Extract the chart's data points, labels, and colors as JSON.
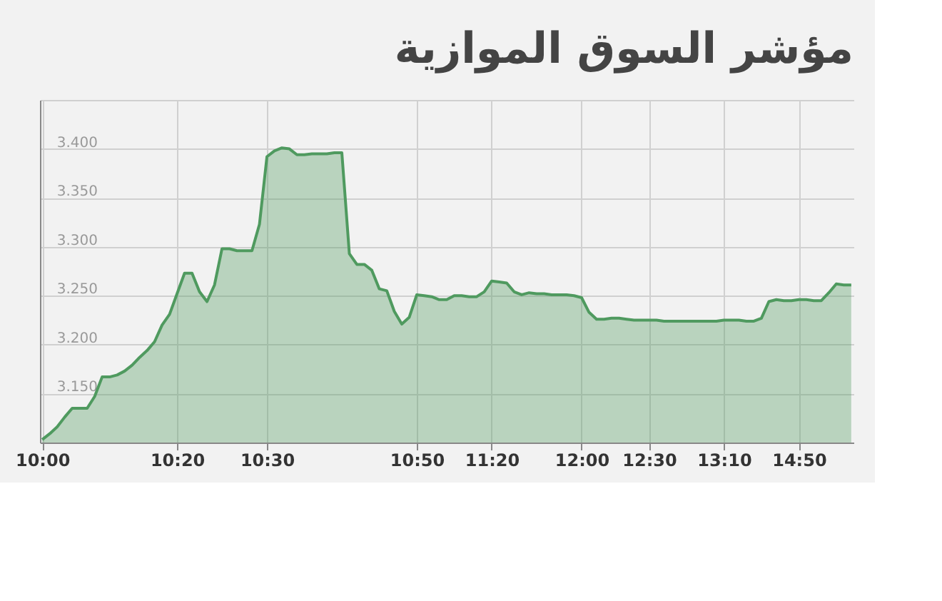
{
  "chart_data": {
    "type": "area",
    "title": "مؤشر السوق الموازية",
    "categories": [
      "10:00",
      null,
      null,
      null,
      null,
      null,
      null,
      null,
      null,
      null,
      null,
      null,
      null,
      null,
      null,
      null,
      null,
      null,
      "10:20",
      null,
      null,
      null,
      null,
      null,
      null,
      null,
      null,
      null,
      null,
      null,
      "10:30",
      null,
      null,
      null,
      null,
      null,
      null,
      null,
      null,
      null,
      null,
      null,
      null,
      null,
      null,
      null,
      null,
      null,
      null,
      null,
      "10:50",
      null,
      null,
      null,
      null,
      null,
      null,
      null,
      null,
      null,
      "11:20",
      null,
      null,
      null,
      null,
      null,
      null,
      null,
      null,
      null,
      null,
      null,
      "12:00",
      null,
      null,
      null,
      null,
      null,
      null,
      null,
      null,
      "12:30",
      null,
      null,
      null,
      null,
      null,
      null,
      null,
      null,
      null,
      "13:10",
      null,
      null,
      null,
      null,
      null,
      null,
      null,
      null,
      null,
      "14:50",
      null,
      null,
      null,
      null,
      null,
      null,
      null
    ],
    "series": [
      {
        "color": "#4f9a5f",
        "values": [
          3.103,
          3.109,
          3.116,
          3.126,
          3.135,
          3.135,
          3.135,
          3.147,
          3.167,
          3.167,
          3.169,
          3.173,
          3.179,
          3.187,
          3.194,
          3.203,
          3.22,
          3.231,
          3.252,
          3.273,
          3.273,
          3.254,
          3.244,
          3.261,
          3.298,
          3.298,
          3.296,
          3.296,
          3.296,
          3.323,
          3.392,
          3.398,
          3.401,
          3.4,
          3.394,
          3.394,
          3.395,
          3.395,
          3.395,
          3.396,
          3.396,
          3.293,
          3.282,
          3.282,
          3.276,
          3.257,
          3.255,
          3.234,
          3.221,
          3.228,
          3.251,
          3.25,
          3.249,
          3.246,
          3.246,
          3.25,
          3.25,
          3.249,
          3.249,
          3.254,
          3.265,
          3.264,
          3.263,
          3.254,
          3.251,
          3.253,
          3.252,
          3.252,
          3.251,
          3.251,
          3.251,
          3.25,
          3.248,
          3.233,
          3.226,
          3.226,
          3.227,
          3.227,
          3.226,
          3.225,
          3.225,
          3.225,
          3.225,
          3.224,
          3.224,
          3.224,
          3.224,
          3.224,
          3.224,
          3.224,
          3.224,
          3.225,
          3.225,
          3.225,
          3.224,
          3.224,
          3.227,
          3.244,
          3.246,
          3.245,
          3.245,
          3.246,
          3.246,
          3.245,
          3.245,
          3.253,
          3.262,
          3.261,
          3.261
        ]
      }
    ],
    "ylim": [
      3.1,
      3.45
    ],
    "yticks": [
      {
        "value": 3.15,
        "label": "3.150"
      },
      {
        "value": 3.2,
        "label": "3.200"
      },
      {
        "value": 3.25,
        "label": "3.250"
      },
      {
        "value": 3.3,
        "label": "3.300"
      },
      {
        "value": 3.35,
        "label": "3.350"
      },
      {
        "value": 3.4,
        "label": "3.400"
      },
      {
        "value": 3.45,
        "label": null
      }
    ],
    "grid": true
  }
}
